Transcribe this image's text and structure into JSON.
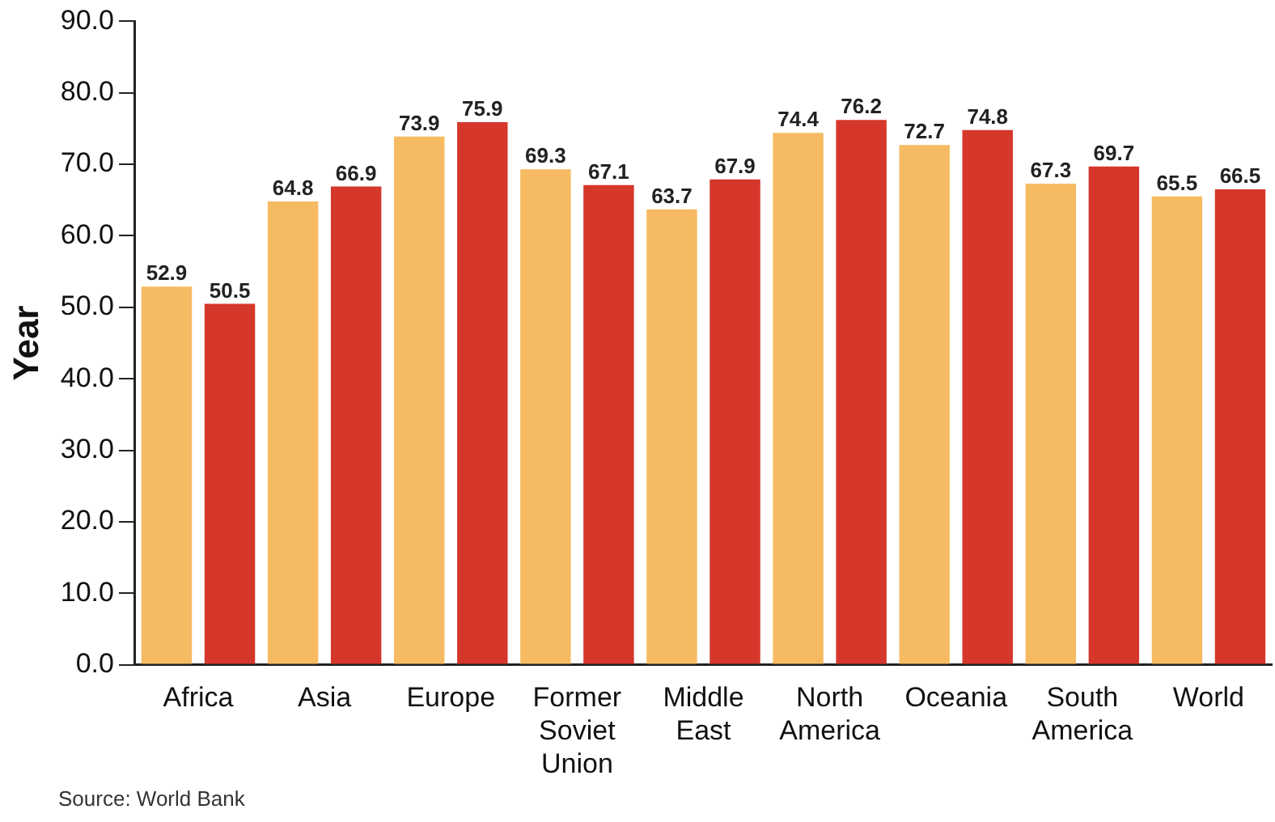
{
  "chart_data": {
    "type": "bar",
    "ylabel": "Year",
    "categories": [
      "Africa",
      "Asia",
      "Europe",
      "Former Soviet Union",
      "Middle East",
      "North America",
      "Oceania",
      "South America",
      "World"
    ],
    "series": [
      {
        "color": "#f6bb62",
        "values": [
          52.9,
          64.8,
          73.9,
          69.3,
          63.7,
          74.4,
          72.7,
          67.3,
          65.5
        ]
      },
      {
        "color": "#d5372b",
        "values": [
          50.5,
          66.9,
          75.9,
          67.1,
          67.9,
          76.2,
          74.8,
          69.7,
          66.5
        ]
      }
    ],
    "ylim": [
      0,
      90
    ],
    "yticks": [
      {
        "value": 0,
        "label": "0.0"
      },
      {
        "value": 10,
        "label": "10.0"
      },
      {
        "value": 20,
        "label": "20.0"
      },
      {
        "value": 30,
        "label": "30.0"
      },
      {
        "value": 40,
        "label": "40.0"
      },
      {
        "value": 50,
        "label": "50.0"
      },
      {
        "value": 60,
        "label": "60.0"
      },
      {
        "value": 70,
        "label": "70.0"
      },
      {
        "value": 80,
        "label": "80.0"
      },
      {
        "value": 90,
        "label": "90.0"
      }
    ],
    "grid": false,
    "legend": false,
    "data_labels": true,
    "annotations": [
      "Source: World Bank"
    ]
  }
}
